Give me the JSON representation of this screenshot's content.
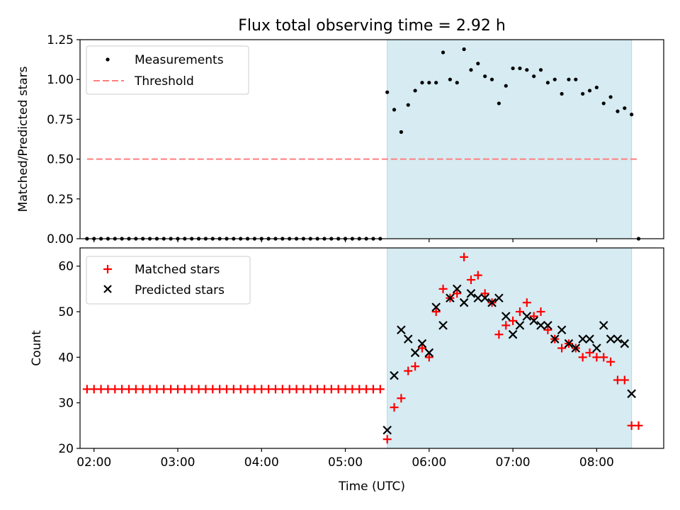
{
  "title": "Flux total observing time = 2.92 h",
  "colors": {
    "measurement": "#000000",
    "threshold": "#ff7f7f",
    "matched": "#ff0000",
    "predicted": "#000000",
    "span": "#add8e6"
  },
  "chart_data": [
    {
      "type": "scatter",
      "ylabel": "Matched/Predicted stars",
      "ylim": [
        0,
        1.25
      ],
      "yticks": [
        0.0,
        0.25,
        0.5,
        0.75,
        1.0,
        1.25
      ],
      "ytick_labels": [
        "0.00",
        "0.25",
        "0.50",
        "0.75",
        "1.00",
        "1.25"
      ],
      "xlim": [
        "01:50",
        "08:48"
      ],
      "xticks": [
        "02:00",
        "03:00",
        "04:00",
        "05:00",
        "06:00",
        "07:00",
        "08:00"
      ],
      "highlight_span": [
        "05:30",
        "08:25"
      ],
      "legend_position": "upper-left",
      "legend": [
        "Measurements",
        "Threshold"
      ],
      "threshold": {
        "value": 0.5,
        "x_range": [
          "01:55",
          "08:30"
        ]
      },
      "series": [
        {
          "name": "Measurements",
          "marker": "dot",
          "points": [
            [
              "01:55",
              0
            ],
            [
              "02:00",
              0
            ],
            [
              "02:05",
              0
            ],
            [
              "02:10",
              0
            ],
            [
              "02:15",
              0
            ],
            [
              "02:20",
              0
            ],
            [
              "02:25",
              0
            ],
            [
              "02:30",
              0
            ],
            [
              "02:35",
              0
            ],
            [
              "02:40",
              0
            ],
            [
              "02:45",
              0
            ],
            [
              "02:50",
              0
            ],
            [
              "02:55",
              0
            ],
            [
              "03:00",
              0
            ],
            [
              "03:05",
              0
            ],
            [
              "03:10",
              0
            ],
            [
              "03:15",
              0
            ],
            [
              "03:20",
              0
            ],
            [
              "03:25",
              0
            ],
            [
              "03:30",
              0
            ],
            [
              "03:35",
              0
            ],
            [
              "03:40",
              0
            ],
            [
              "03:45",
              0
            ],
            [
              "03:50",
              0
            ],
            [
              "03:55",
              0
            ],
            [
              "04:00",
              0
            ],
            [
              "04:05",
              0
            ],
            [
              "04:10",
              0
            ],
            [
              "04:15",
              0
            ],
            [
              "04:20",
              0
            ],
            [
              "04:25",
              0
            ],
            [
              "04:30",
              0
            ],
            [
              "04:35",
              0
            ],
            [
              "04:40",
              0
            ],
            [
              "04:45",
              0
            ],
            [
              "04:50",
              0
            ],
            [
              "04:55",
              0
            ],
            [
              "05:00",
              0
            ],
            [
              "05:05",
              0
            ],
            [
              "05:10",
              0
            ],
            [
              "05:15",
              0
            ],
            [
              "05:20",
              0
            ],
            [
              "05:25",
              0
            ],
            [
              "05:30",
              0.92
            ],
            [
              "05:35",
              0.81
            ],
            [
              "05:40",
              0.67
            ],
            [
              "05:45",
              0.84
            ],
            [
              "05:50",
              0.93
            ],
            [
              "05:55",
              0.98
            ],
            [
              "06:00",
              0.98
            ],
            [
              "06:05",
              0.98
            ],
            [
              "06:10",
              1.17
            ],
            [
              "06:15",
              1.0
            ],
            [
              "06:20",
              0.98
            ],
            [
              "06:25",
              1.19
            ],
            [
              "06:30",
              1.06
            ],
            [
              "06:35",
              1.1
            ],
            [
              "06:40",
              1.02
            ],
            [
              "06:45",
              1.0
            ],
            [
              "06:50",
              0.85
            ],
            [
              "06:55",
              0.96
            ],
            [
              "07:00",
              1.07
            ],
            [
              "07:05",
              1.07
            ],
            [
              "07:10",
              1.06
            ],
            [
              "07:15",
              1.02
            ],
            [
              "07:20",
              1.06
            ],
            [
              "07:25",
              0.98
            ],
            [
              "07:30",
              1.0
            ],
            [
              "07:35",
              0.91
            ],
            [
              "07:40",
              1.0
            ],
            [
              "07:45",
              1.0
            ],
            [
              "07:50",
              0.91
            ],
            [
              "07:55",
              0.93
            ],
            [
              "08:00",
              0.95
            ],
            [
              "08:05",
              0.85
            ],
            [
              "08:10",
              0.89
            ],
            [
              "08:15",
              0.8
            ],
            [
              "08:20",
              0.82
            ],
            [
              "08:25",
              0.78
            ],
            [
              "08:30",
              0.0
            ]
          ]
        }
      ]
    },
    {
      "type": "scatter",
      "xlabel": "Time (UTC)",
      "ylabel": "Count",
      "ylim": [
        20,
        64
      ],
      "yticks": [
        20,
        30,
        40,
        50,
        60
      ],
      "ytick_labels": [
        "20",
        "30",
        "40",
        "50",
        "60"
      ],
      "xlim": [
        "01:50",
        "08:48"
      ],
      "xticks": [
        "02:00",
        "03:00",
        "04:00",
        "05:00",
        "06:00",
        "07:00",
        "08:00"
      ],
      "highlight_span": [
        "05:30",
        "08:25"
      ],
      "legend_position": "upper-left",
      "legend": [
        "Matched stars",
        "Predicted stars"
      ],
      "series": [
        {
          "name": "Matched stars",
          "marker": "plus",
          "points": [
            [
              "01:55",
              33
            ],
            [
              "02:00",
              33
            ],
            [
              "02:05",
              33
            ],
            [
              "02:10",
              33
            ],
            [
              "02:15",
              33
            ],
            [
              "02:20",
              33
            ],
            [
              "02:25",
              33
            ],
            [
              "02:30",
              33
            ],
            [
              "02:35",
              33
            ],
            [
              "02:40",
              33
            ],
            [
              "02:45",
              33
            ],
            [
              "02:50",
              33
            ],
            [
              "02:55",
              33
            ],
            [
              "03:00",
              33
            ],
            [
              "03:05",
              33
            ],
            [
              "03:10",
              33
            ],
            [
              "03:15",
              33
            ],
            [
              "03:20",
              33
            ],
            [
              "03:25",
              33
            ],
            [
              "03:30",
              33
            ],
            [
              "03:35",
              33
            ],
            [
              "03:40",
              33
            ],
            [
              "03:45",
              33
            ],
            [
              "03:50",
              33
            ],
            [
              "03:55",
              33
            ],
            [
              "04:00",
              33
            ],
            [
              "04:05",
              33
            ],
            [
              "04:10",
              33
            ],
            [
              "04:15",
              33
            ],
            [
              "04:20",
              33
            ],
            [
              "04:25",
              33
            ],
            [
              "04:30",
              33
            ],
            [
              "04:35",
              33
            ],
            [
              "04:40",
              33
            ],
            [
              "04:45",
              33
            ],
            [
              "04:50",
              33
            ],
            [
              "04:55",
              33
            ],
            [
              "05:00",
              33
            ],
            [
              "05:05",
              33
            ],
            [
              "05:10",
              33
            ],
            [
              "05:15",
              33
            ],
            [
              "05:20",
              33
            ],
            [
              "05:25",
              33
            ],
            [
              "05:30",
              22
            ],
            [
              "05:35",
              29
            ],
            [
              "05:40",
              31
            ],
            [
              "05:45",
              37
            ],
            [
              "05:50",
              38
            ],
            [
              "05:55",
              42
            ],
            [
              "06:00",
              40
            ],
            [
              "06:05",
              50
            ],
            [
              "06:10",
              55
            ],
            [
              "06:15",
              53
            ],
            [
              "06:20",
              54
            ],
            [
              "06:25",
              62
            ],
            [
              "06:30",
              57
            ],
            [
              "06:35",
              58
            ],
            [
              "06:40",
              54
            ],
            [
              "06:45",
              52
            ],
            [
              "06:50",
              45
            ],
            [
              "06:55",
              47
            ],
            [
              "07:00",
              48
            ],
            [
              "07:05",
              50
            ],
            [
              "07:10",
              52
            ],
            [
              "07:15",
              49
            ],
            [
              "07:20",
              50
            ],
            [
              "07:25",
              46
            ],
            [
              "07:30",
              44
            ],
            [
              "07:35",
              42
            ],
            [
              "07:40",
              43
            ],
            [
              "07:45",
              42
            ],
            [
              "07:50",
              40
            ],
            [
              "07:55",
              41
            ],
            [
              "08:00",
              40
            ],
            [
              "08:05",
              40
            ],
            [
              "08:10",
              39
            ],
            [
              "08:15",
              35
            ],
            [
              "08:20",
              35
            ],
            [
              "08:25",
              25
            ],
            [
              "08:30",
              25
            ]
          ]
        },
        {
          "name": "Predicted stars",
          "marker": "x",
          "points": [
            [
              "05:30",
              24
            ],
            [
              "05:35",
              36
            ],
            [
              "05:40",
              46
            ],
            [
              "05:45",
              44
            ],
            [
              "05:50",
              41
            ],
            [
              "05:55",
              43
            ],
            [
              "06:00",
              41
            ],
            [
              "06:05",
              51
            ],
            [
              "06:10",
              47
            ],
            [
              "06:15",
              53
            ],
            [
              "06:20",
              55
            ],
            [
              "06:25",
              52
            ],
            [
              "06:30",
              54
            ],
            [
              "06:35",
              53
            ],
            [
              "06:40",
              53
            ],
            [
              "06:45",
              52
            ],
            [
              "06:50",
              53
            ],
            [
              "06:55",
              49
            ],
            [
              "07:00",
              45
            ],
            [
              "07:05",
              47
            ],
            [
              "07:10",
              49
            ],
            [
              "07:15",
              48
            ],
            [
              "07:20",
              47
            ],
            [
              "07:25",
              47
            ],
            [
              "07:30",
              44
            ],
            [
              "07:35",
              46
            ],
            [
              "07:40",
              43
            ],
            [
              "07:45",
              42
            ],
            [
              "07:50",
              44
            ],
            [
              "07:55",
              44
            ],
            [
              "08:00",
              42
            ],
            [
              "08:05",
              47
            ],
            [
              "08:10",
              44
            ],
            [
              "08:15",
              44
            ],
            [
              "08:20",
              43
            ],
            [
              "08:25",
              32
            ]
          ]
        }
      ]
    }
  ]
}
